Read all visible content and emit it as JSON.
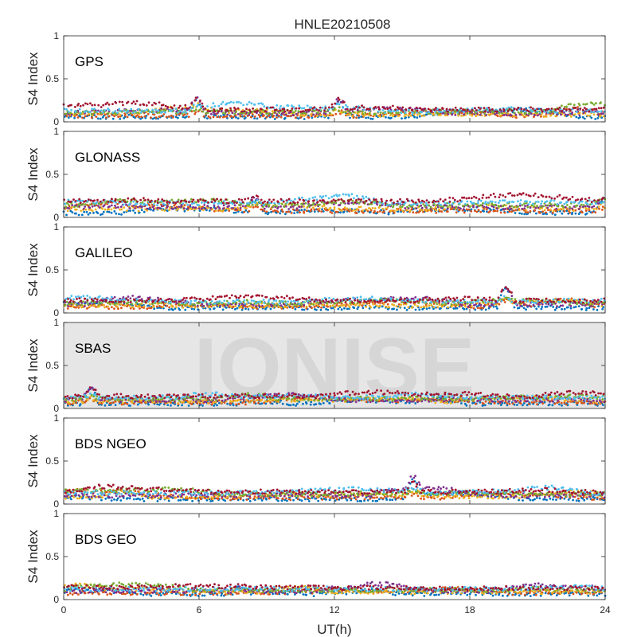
{
  "figure": {
    "title": "HNLE20210508",
    "xlabel": "UT(h)",
    "ylabel": "S4 Index",
    "watermark": "IONISE"
  },
  "colors": {
    "series": [
      "#0072BD",
      "#D95319",
      "#EDB120",
      "#7E2F8E",
      "#77AC30",
      "#4DBEEE",
      "#A2142F"
    ],
    "axis": "#262626",
    "watermark": "#E6E6E6",
    "watermark_text": "#D6D6D6"
  },
  "chart_data": [
    {
      "type": "scatter",
      "panel_label": "GPS",
      "xlim": [
        0,
        24
      ],
      "ylim": [
        0,
        1
      ],
      "x_ticks": [
        0,
        6,
        12,
        18,
        24
      ],
      "y_ticks": [
        0,
        0.5,
        1
      ],
      "grid": false,
      "baseline_range": [
        0.05,
        0.15
      ],
      "peak_s4": [
        {
          "x": 5.9,
          "y": 0.26
        },
        {
          "x": 12.2,
          "y": 0.25
        }
      ]
    },
    {
      "type": "scatter",
      "panel_label": "GLONASS",
      "xlim": [
        0,
        24
      ],
      "ylim": [
        0,
        1
      ],
      "x_ticks": [
        0,
        6,
        12,
        18,
        24
      ],
      "y_ticks": [
        0,
        0.5,
        1
      ],
      "grid": false,
      "baseline_range": [
        0.04,
        0.2
      ],
      "peak_s4": [
        {
          "x": 8.5,
          "y": 0.24
        },
        {
          "x": 23.9,
          "y": 0.22
        }
      ]
    },
    {
      "type": "scatter",
      "panel_label": "GALILEO",
      "xlim": [
        0,
        24
      ],
      "ylim": [
        0,
        1
      ],
      "x_ticks": [
        0,
        6,
        12,
        18,
        24
      ],
      "y_ticks": [
        0,
        0.5,
        1
      ],
      "grid": false,
      "baseline_range": [
        0.05,
        0.15
      ],
      "peak_s4": [
        {
          "x": 19.6,
          "y": 0.3
        }
      ]
    },
    {
      "type": "scatter",
      "panel_label": "SBAS",
      "xlim": [
        0,
        24
      ],
      "ylim": [
        0,
        1
      ],
      "x_ticks": [
        0,
        6,
        12,
        18,
        24
      ],
      "y_ticks": [
        0,
        0.5,
        1
      ],
      "grid": false,
      "baseline_range": [
        0.05,
        0.15
      ],
      "peak_s4": [
        {
          "x": 1.2,
          "y": 0.24
        }
      ]
    },
    {
      "type": "scatter",
      "panel_label": "BDS NGEO",
      "xlim": [
        0,
        24
      ],
      "ylim": [
        0,
        1
      ],
      "x_ticks": [
        0,
        6,
        12,
        18,
        24
      ],
      "y_ticks": [
        0,
        0.5,
        1
      ],
      "grid": false,
      "baseline_range": [
        0.05,
        0.15
      ],
      "peak_s4": [
        {
          "x": 15.5,
          "y": 0.25
        }
      ]
    },
    {
      "type": "scatter",
      "panel_label": "BDS GEO",
      "xlim": [
        0,
        24
      ],
      "ylim": [
        0,
        1
      ],
      "x_ticks": [
        0,
        6,
        12,
        18,
        24
      ],
      "y_ticks": [
        0,
        0.5,
        1
      ],
      "grid": false,
      "baseline_range": [
        0.06,
        0.14
      ],
      "peak_s4": [
        {
          "x": 7.8,
          "y": 0.15
        }
      ]
    }
  ]
}
